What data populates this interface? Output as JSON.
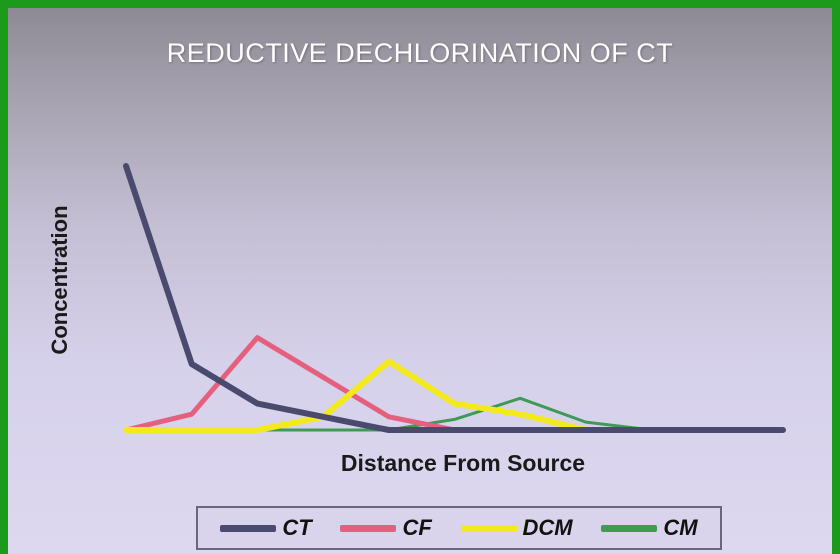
{
  "chart_data": {
    "type": "line",
    "title": "REDUCTIVE DECHLORINATION OF CT",
    "xlabel": "Distance From Source",
    "ylabel": "Concentration",
    "x": [
      0,
      1,
      2,
      3,
      4,
      5,
      6,
      7,
      8,
      9,
      10
    ],
    "xlim": [
      0,
      10
    ],
    "ylim": [
      0,
      100
    ],
    "grid": false,
    "legend_position": "bottom",
    "series": [
      {
        "name": "CT",
        "color": "#4a4a6e",
        "width": 6,
        "values": [
          100,
          25,
          10,
          5,
          0,
          0,
          0,
          0,
          0,
          0,
          0
        ]
      },
      {
        "name": "CF",
        "color": "#e4607e",
        "width": 5,
        "values": [
          0,
          6,
          35,
          20,
          5,
          0,
          0,
          0,
          0,
          0,
          0
        ]
      },
      {
        "name": "DCM",
        "color": "#f2ea1e",
        "width": 6,
        "values": [
          0,
          0,
          0,
          5,
          26,
          10,
          6,
          0,
          0,
          0,
          0
        ]
      },
      {
        "name": "CM",
        "color": "#3f9a55",
        "width": 3,
        "values": [
          0,
          0,
          0,
          0,
          0,
          4,
          12,
          3,
          0,
          0,
          0
        ]
      }
    ]
  }
}
